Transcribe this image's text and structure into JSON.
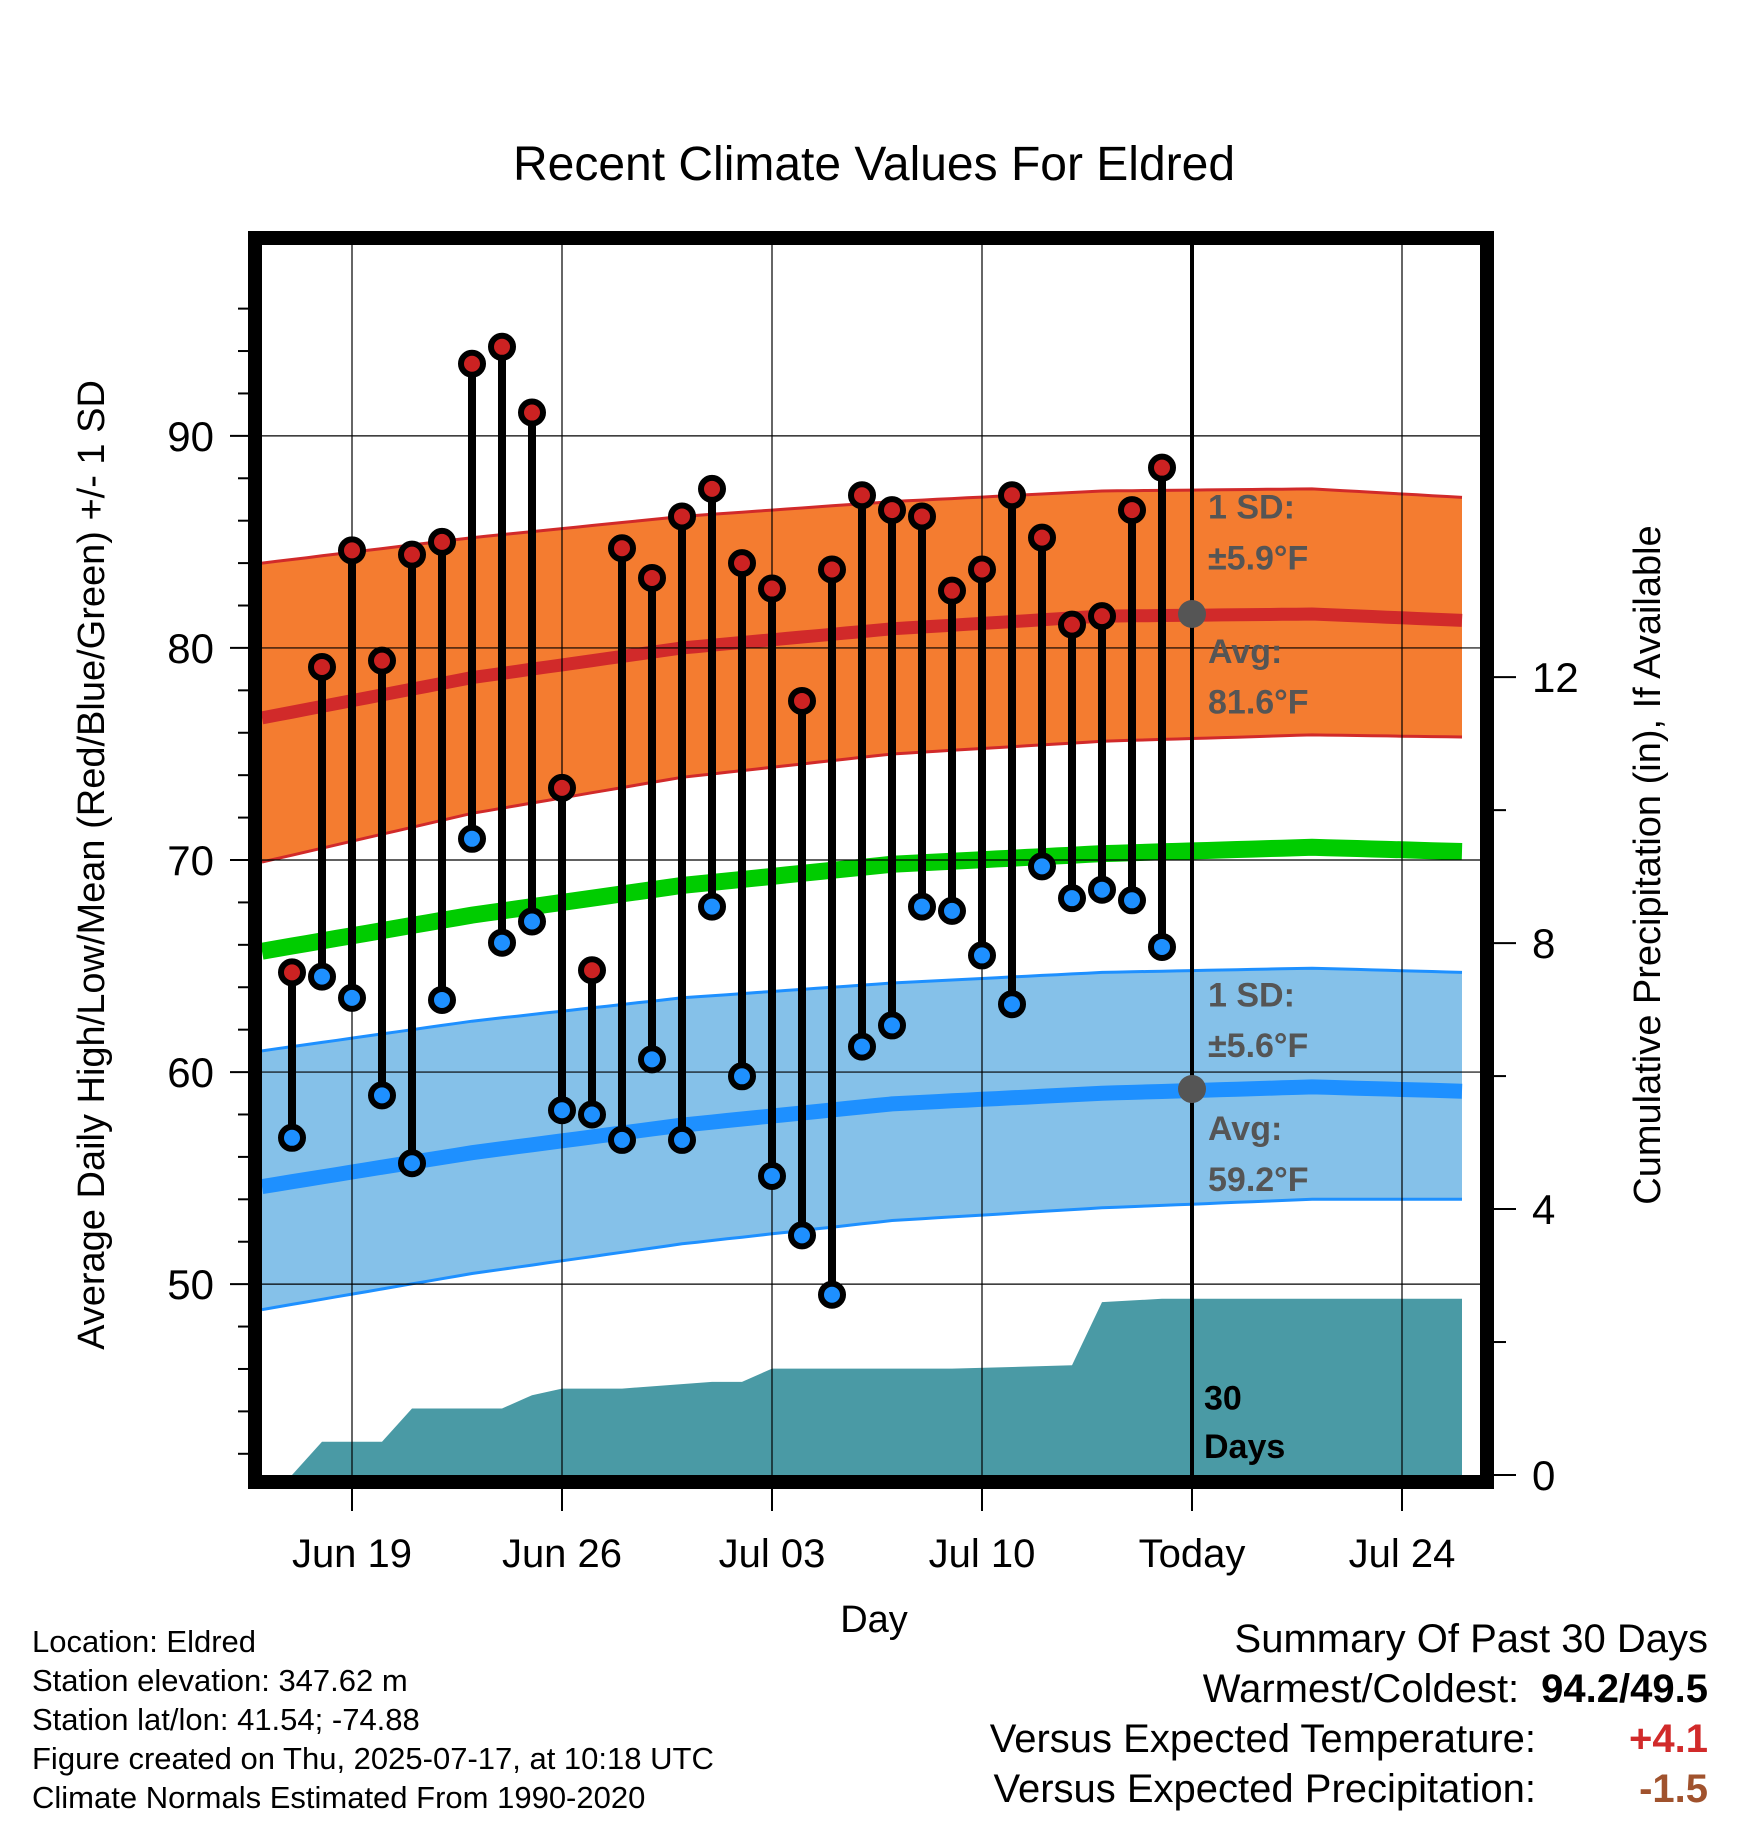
{
  "chart_data": {
    "type": "line",
    "title": "Recent Climate Values For Eldred",
    "xlabel": "Day",
    "ylabel": "Average Daily High/Low/Mean (Red/Blue/Green) +/- 1 SD",
    "y2label": "Cumulative Precipitation (in), If Available",
    "ylim": [
      41,
      99
    ],
    "y2lim": [
      0,
      18.5
    ],
    "y_ticks": [
      50,
      60,
      70,
      80,
      90
    ],
    "y2_ticks": [
      0,
      4,
      8,
      12
    ],
    "x_ticks": [
      {
        "label": "Jun 19",
        "date": "2025-06-19"
      },
      {
        "label": "Jun 26",
        "date": "2025-06-26"
      },
      {
        "label": "Jul 03",
        "date": "2025-07-03"
      },
      {
        "label": "Jul 10",
        "date": "2025-07-10"
      },
      {
        "label": "Today",
        "date": "2025-07-17"
      },
      {
        "label": "Jul 24",
        "date": "2025-07-24"
      }
    ],
    "xlim": [
      "2025-06-16",
      "2025-07-26"
    ],
    "today": "2025-07-17",
    "grid": true,
    "series": [
      {
        "name": "High",
        "color": "#cc2222",
        "dates": [
          "2025-06-17",
          "2025-06-18",
          "2025-06-19",
          "2025-06-20",
          "2025-06-21",
          "2025-06-22",
          "2025-06-23",
          "2025-06-24",
          "2025-06-25",
          "2025-06-26",
          "2025-06-27",
          "2025-06-28",
          "2025-06-29",
          "2025-06-30",
          "2025-07-01",
          "2025-07-02",
          "2025-07-03",
          "2025-07-04",
          "2025-07-05",
          "2025-07-06",
          "2025-07-07",
          "2025-07-08",
          "2025-07-09",
          "2025-07-10",
          "2025-07-11",
          "2025-07-12",
          "2025-07-13",
          "2025-07-14",
          "2025-07-15",
          "2025-07-16"
        ],
        "values": [
          64.7,
          79.1,
          84.6,
          79.4,
          84.4,
          85.0,
          93.4,
          94.2,
          91.1,
          73.4,
          64.8,
          84.7,
          83.3,
          86.2,
          87.5,
          84.0,
          82.8,
          77.5,
          83.7,
          87.2,
          86.5,
          86.2,
          82.7,
          83.7,
          87.2,
          85.2,
          81.1,
          81.5,
          86.5,
          88.5
        ]
      },
      {
        "name": "Low",
        "color": "#1e90ff",
        "dates": [
          "2025-06-17",
          "2025-06-18",
          "2025-06-19",
          "2025-06-20",
          "2025-06-21",
          "2025-06-22",
          "2025-06-23",
          "2025-06-24",
          "2025-06-25",
          "2025-06-26",
          "2025-06-27",
          "2025-06-28",
          "2025-06-29",
          "2025-06-30",
          "2025-07-01",
          "2025-07-02",
          "2025-07-03",
          "2025-07-04",
          "2025-07-05",
          "2025-07-06",
          "2025-07-07",
          "2025-07-08",
          "2025-07-09",
          "2025-07-10",
          "2025-07-11",
          "2025-07-12",
          "2025-07-13",
          "2025-07-14",
          "2025-07-15",
          "2025-07-16"
        ],
        "values": [
          56.9,
          64.5,
          63.5,
          58.9,
          55.7,
          63.4,
          71.0,
          66.1,
          67.1,
          58.2,
          58.0,
          56.8,
          60.6,
          56.8,
          67.8,
          59.8,
          55.1,
          52.3,
          49.5,
          61.2,
          62.2,
          67.8,
          67.6,
          65.5,
          63.2,
          69.7,
          68.2,
          68.6,
          68.1,
          65.9
        ]
      }
    ],
    "normals": {
      "dates": [
        "2025-06-16",
        "2025-06-23",
        "2025-06-30",
        "2025-07-07",
        "2025-07-14",
        "2025-07-21",
        "2025-07-26"
      ],
      "high_avg": [
        76.7,
        78.6,
        80.0,
        80.9,
        81.5,
        81.6,
        81.3
      ],
      "high_upper": [
        84.0,
        85.2,
        86.2,
        86.9,
        87.4,
        87.5,
        87.1
      ],
      "high_lower": [
        69.9,
        72.2,
        73.9,
        75.0,
        75.6,
        75.9,
        75.8
      ],
      "mean_avg": [
        65.7,
        67.4,
        68.8,
        69.8,
        70.3,
        70.6,
        70.4
      ],
      "low_avg": [
        54.6,
        56.2,
        57.5,
        58.5,
        59.0,
        59.3,
        59.1
      ],
      "low_upper": [
        61.0,
        62.4,
        63.5,
        64.2,
        64.7,
        64.9,
        64.7
      ],
      "low_lower": [
        48.8,
        50.5,
        51.9,
        53.0,
        53.6,
        54.0,
        54.0
      ],
      "high_color": "#f47c30",
      "high_line_color": "#d12a2a",
      "mean_color": "#00cc00",
      "low_band_color": "#85c1e9",
      "low_line_color": "#1e90ff"
    },
    "precipitation": {
      "color": "#4a9aa5",
      "dates": [
        "2025-06-17",
        "2025-06-18",
        "2025-06-20",
        "2025-06-21",
        "2025-06-22",
        "2025-06-24",
        "2025-06-25",
        "2025-06-26",
        "2025-06-28",
        "2025-07-01",
        "2025-07-02",
        "2025-07-03",
        "2025-07-06",
        "2025-07-09",
        "2025-07-13",
        "2025-07-14",
        "2025-07-16",
        "2025-07-26"
      ],
      "values": [
        0.0,
        0.5,
        0.5,
        1.0,
        1.0,
        1.0,
        1.2,
        1.3,
        1.3,
        1.4,
        1.4,
        1.6,
        1.6,
        1.6,
        1.65,
        2.6,
        2.65,
        2.65
      ]
    },
    "annotations": {
      "high_sd": "1 SD:",
      "high_sd_value": "±5.9°F",
      "high_avg_label": "Avg:",
      "high_avg_value": "81.6°F",
      "low_sd": "1 SD:",
      "low_sd_value": "±5.6°F",
      "low_avg_label": "Avg:",
      "low_avg_value": "59.2°F",
      "days_label_1": "30",
      "days_label_2": "Days",
      "marker_high": 81.6,
      "marker_low": 59.2
    }
  },
  "info": {
    "location": "Location: Eldred",
    "elevation": "Station elevation: 347.62 m",
    "latlon": "Station lat/lon: 41.54; -74.88",
    "created": "Figure created on Thu, 2025-07-17, at 10:18 UTC",
    "normals": "Climate Normals Estimated From 1990-2020"
  },
  "summary": {
    "title": "Summary Of Past 30 Days",
    "warm_cold_label": "Warmest/Coldest:",
    "warm_cold_value": "94.2/49.5",
    "temp_label": "Versus Expected Temperature:",
    "temp_value": "+4.1",
    "temp_color": "#d12a2a",
    "precip_label": "Versus Expected Precipitation:",
    "precip_value": "-1.5",
    "precip_color": "#a0522d"
  }
}
